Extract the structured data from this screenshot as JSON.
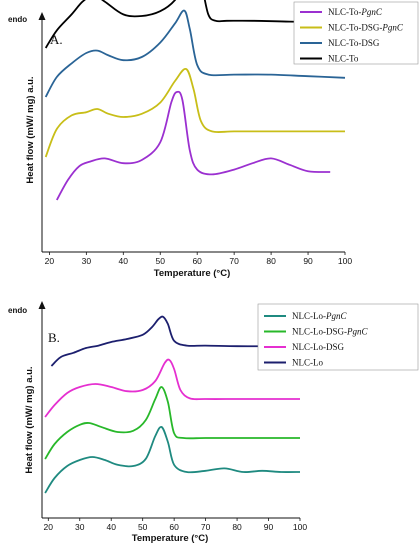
{
  "chart_data": [
    {
      "type": "line",
      "panel_label": "A.",
      "endo_label": "endo",
      "xlabel": "Temperature (°C)",
      "ylabel": "Heat flow (mW/ mg) a.u.",
      "x_ticks": [
        20,
        30,
        40,
        50,
        60,
        70,
        80,
        90,
        100
      ],
      "xlim": [
        18,
        100
      ],
      "legend_position": "top-right",
      "series": [
        {
          "name": "NLC-To-PgnC",
          "name_parts": [
            "NLC-To-",
            "PgnC",
            ""
          ],
          "color": "#9b30d0",
          "x": [
            22,
            25,
            28,
            31,
            35,
            40,
            45,
            50,
            53,
            54.5,
            56,
            58,
            60,
            64,
            70,
            75,
            80,
            85,
            90,
            96
          ],
          "y": [
            0.2,
            0.45,
            0.62,
            0.68,
            0.72,
            0.66,
            0.7,
            0.92,
            1.42,
            1.55,
            1.45,
            0.82,
            0.58,
            0.52,
            0.58,
            0.66,
            0.72,
            0.64,
            0.56,
            0.55
          ]
        },
        {
          "name": "NLC-To-DSG-PgnC",
          "name_parts": [
            "NLC-To-DSG-",
            "PgnC",
            ""
          ],
          "color": "#c8be18",
          "x": [
            19,
            22,
            26,
            30,
            33,
            36,
            40,
            45,
            50,
            54,
            57,
            59,
            61,
            64,
            70,
            80,
            90,
            100
          ],
          "y": [
            0.1,
            0.45,
            0.62,
            0.66,
            0.7,
            0.64,
            0.6,
            0.64,
            0.78,
            1.05,
            1.2,
            0.95,
            0.55,
            0.42,
            0.42,
            0.42,
            0.42,
            0.42
          ]
        },
        {
          "name": "NLC-To-DSG",
          "name_parts": [
            "NLC-To-DSG",
            "",
            ""
          ],
          "color": "#2a6496",
          "x": [
            19,
            22,
            26,
            30,
            33,
            36,
            40,
            45,
            50,
            54,
            56.5,
            58,
            60,
            63,
            70,
            80,
            90,
            100
          ],
          "y": [
            0.1,
            0.35,
            0.52,
            0.65,
            0.68,
            0.62,
            0.56,
            0.6,
            0.78,
            1.02,
            1.18,
            0.95,
            0.5,
            0.38,
            0.38,
            0.38,
            0.36,
            0.34
          ]
        },
        {
          "name": "NLC-To",
          "name_parts": [
            "NLC-To",
            "",
            ""
          ],
          "color": "#000000",
          "x": [
            19,
            22,
            26,
            29,
            32,
            35,
            40,
            45,
            50,
            54,
            56,
            57,
            59,
            61,
            63,
            65,
            68,
            75,
            85,
            100
          ],
          "y": [
            0.0,
            0.22,
            0.42,
            0.58,
            0.66,
            0.58,
            0.42,
            0.4,
            0.46,
            0.6,
            0.78,
            0.84,
            0.78,
            0.8,
            0.42,
            0.34,
            0.34,
            0.34,
            0.33,
            0.32
          ]
        }
      ]
    },
    {
      "type": "line",
      "panel_label": "B.",
      "endo_label": "endo",
      "xlabel": "Temperature (°C)",
      "ylabel": "Heat flow (mW/ mg) a.u.",
      "x_ticks": [
        20,
        30,
        40,
        50,
        60,
        70,
        80,
        90,
        100
      ],
      "xlim": [
        18,
        100
      ],
      "legend_position": "top-right",
      "series": [
        {
          "name": "NLC-Lo-PgnC",
          "name_parts": [
            "NLC-Lo-",
            "PgnC",
            ""
          ],
          "color": "#1f8a80",
          "x": [
            19,
            22,
            26,
            30,
            34,
            38,
            42,
            47,
            51,
            54,
            56,
            58,
            60,
            64,
            70,
            76,
            82,
            88,
            94,
            100
          ],
          "y": [
            0.15,
            0.4,
            0.6,
            0.7,
            0.75,
            0.7,
            0.62,
            0.6,
            0.72,
            1.1,
            1.25,
            1.0,
            0.62,
            0.5,
            0.52,
            0.56,
            0.5,
            0.52,
            0.5,
            0.5
          ]
        },
        {
          "name": "NLC-Lo-DSG-PgnC",
          "name_parts": [
            "NLC-Lo-DSG-",
            "PgnC",
            ""
          ],
          "color": "#28b82a",
          "x": [
            19,
            22,
            26,
            30,
            33,
            37,
            42,
            47,
            51,
            54,
            56,
            58,
            60,
            63,
            70,
            80,
            90,
            100
          ],
          "y": [
            0.05,
            0.3,
            0.5,
            0.62,
            0.65,
            0.58,
            0.5,
            0.52,
            0.7,
            1.05,
            1.25,
            1.0,
            0.48,
            0.4,
            0.4,
            0.4,
            0.4,
            0.4
          ]
        },
        {
          "name": "NLC-Lo-DSG",
          "name_parts": [
            "NLC-Lo-DSG",
            "",
            ""
          ],
          "color": "#e52fd0",
          "x": [
            19,
            22,
            26,
            30,
            35,
            40,
            45,
            50,
            54,
            57,
            58.5,
            60,
            62,
            65,
            70,
            80,
            90,
            100
          ],
          "y": [
            0.05,
            0.25,
            0.45,
            0.55,
            0.6,
            0.55,
            0.48,
            0.5,
            0.65,
            0.95,
            1.0,
            0.85,
            0.5,
            0.36,
            0.35,
            0.35,
            0.35,
            0.35
          ]
        },
        {
          "name": "NLC-Lo",
          "name_parts": [
            "NLC-Lo",
            "",
            ""
          ],
          "color": "#1c1f6e",
          "x": [
            21,
            24,
            28,
            32,
            36,
            40,
            45,
            50,
            53,
            55,
            56.5,
            58,
            60,
            64,
            70,
            80,
            90,
            100
          ],
          "y": [
            0.0,
            0.15,
            0.22,
            0.3,
            0.34,
            0.4,
            0.45,
            0.52,
            0.65,
            0.78,
            0.82,
            0.7,
            0.42,
            0.34,
            0.34,
            0.33,
            0.33,
            0.33
          ]
        }
      ]
    }
  ]
}
